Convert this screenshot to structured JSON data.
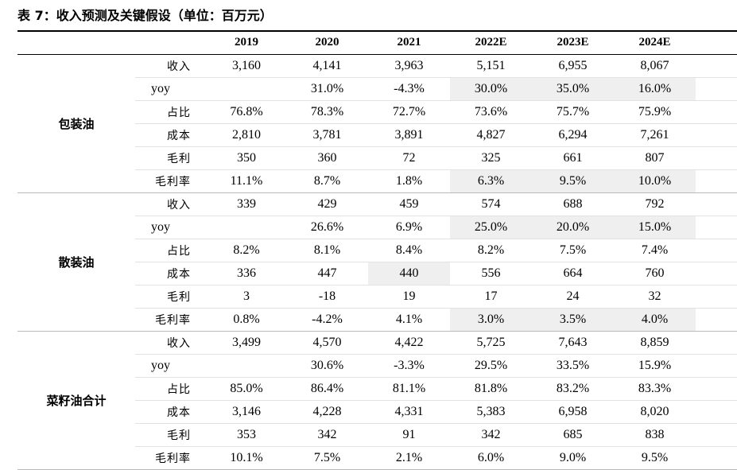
{
  "title": "表 7：收入预测及关键假设（单位：百万元）",
  "columns": [
    "2019",
    "2020",
    "2021",
    "2022E",
    "2023E",
    "2024E"
  ],
  "groups": [
    {
      "name": "包装油",
      "rows": [
        {
          "label": "收入",
          "values": [
            "3,160",
            "4,141",
            "3,963",
            "5,151",
            "6,955",
            "8,067"
          ],
          "highlight": [
            false,
            false,
            false,
            false,
            false,
            false
          ]
        },
        {
          "label": "yoy",
          "values": [
            "",
            "31.0%",
            "-4.3%",
            "30.0%",
            "35.0%",
            "16.0%"
          ],
          "highlight": [
            false,
            false,
            false,
            true,
            true,
            true
          ]
        },
        {
          "label": "占比",
          "values": [
            "76.8%",
            "78.3%",
            "72.7%",
            "73.6%",
            "75.7%",
            "75.9%"
          ],
          "highlight": [
            false,
            false,
            false,
            false,
            false,
            false
          ]
        },
        {
          "label": "成本",
          "values": [
            "2,810",
            "3,781",
            "3,891",
            "4,827",
            "6,294",
            "7,261"
          ],
          "highlight": [
            false,
            false,
            false,
            false,
            false,
            false
          ]
        },
        {
          "label": "毛利",
          "values": [
            "350",
            "360",
            "72",
            "325",
            "661",
            "807"
          ],
          "highlight": [
            false,
            false,
            false,
            false,
            false,
            false
          ]
        },
        {
          "label": "毛利率",
          "values": [
            "11.1%",
            "8.7%",
            "1.8%",
            "6.3%",
            "9.5%",
            "10.0%"
          ],
          "highlight": [
            false,
            false,
            false,
            true,
            true,
            true
          ]
        }
      ]
    },
    {
      "name": "散装油",
      "rows": [
        {
          "label": "收入",
          "values": [
            "339",
            "429",
            "459",
            "574",
            "688",
            "792"
          ],
          "highlight": [
            false,
            false,
            false,
            false,
            false,
            false
          ]
        },
        {
          "label": "yoy",
          "values": [
            "",
            "26.6%",
            "6.9%",
            "25.0%",
            "20.0%",
            "15.0%"
          ],
          "highlight": [
            false,
            false,
            false,
            true,
            true,
            true
          ]
        },
        {
          "label": "占比",
          "values": [
            "8.2%",
            "8.1%",
            "8.4%",
            "8.2%",
            "7.5%",
            "7.4%"
          ],
          "highlight": [
            false,
            false,
            false,
            false,
            false,
            false
          ]
        },
        {
          "label": "成本",
          "values": [
            "336",
            "447",
            "440",
            "556",
            "664",
            "760"
          ],
          "highlight": [
            false,
            false,
            true,
            false,
            false,
            false
          ]
        },
        {
          "label": "毛利",
          "values": [
            "3",
            "-18",
            "19",
            "17",
            "24",
            "32"
          ],
          "highlight": [
            false,
            false,
            false,
            false,
            false,
            false
          ]
        },
        {
          "label": "毛利率",
          "values": [
            "0.8%",
            "-4.2%",
            "4.1%",
            "3.0%",
            "3.5%",
            "4.0%"
          ],
          "highlight": [
            false,
            false,
            false,
            true,
            true,
            true
          ]
        }
      ]
    },
    {
      "name": "菜籽油合计",
      "rows": [
        {
          "label": "收入",
          "values": [
            "3,499",
            "4,570",
            "4,422",
            "5,725",
            "7,643",
            "8,859"
          ],
          "highlight": [
            false,
            false,
            false,
            false,
            false,
            false
          ]
        },
        {
          "label": "yoy",
          "values": [
            "",
            "30.6%",
            "-3.3%",
            "29.5%",
            "33.5%",
            "15.9%"
          ],
          "highlight": [
            false,
            false,
            false,
            false,
            false,
            false
          ]
        },
        {
          "label": "占比",
          "values": [
            "85.0%",
            "86.4%",
            "81.1%",
            "81.8%",
            "83.2%",
            "83.3%"
          ],
          "highlight": [
            false,
            false,
            false,
            false,
            false,
            false
          ]
        },
        {
          "label": "成本",
          "values": [
            "3,146",
            "4,228",
            "4,331",
            "5,383",
            "6,958",
            "8,020"
          ],
          "highlight": [
            false,
            false,
            false,
            false,
            false,
            false
          ]
        },
        {
          "label": "毛利",
          "values": [
            "353",
            "342",
            "91",
            "342",
            "685",
            "838"
          ],
          "highlight": [
            false,
            false,
            false,
            false,
            false,
            false
          ]
        },
        {
          "label": "毛利率",
          "values": [
            "10.1%",
            "7.5%",
            "2.1%",
            "6.0%",
            "9.0%",
            "9.5%"
          ],
          "highlight": [
            false,
            false,
            false,
            false,
            false,
            false
          ]
        }
      ]
    }
  ],
  "colors": {
    "highlight_bg": "#efefef",
    "rule": "#000000"
  }
}
